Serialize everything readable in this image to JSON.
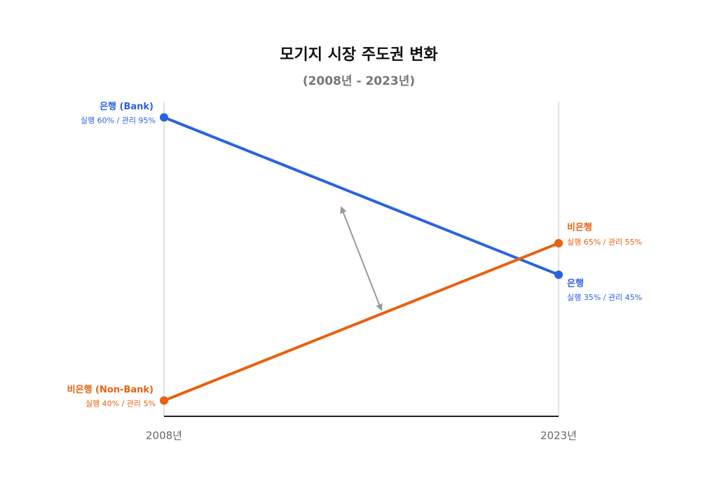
{
  "chart_data": {
    "type": "slope",
    "title": "모기지 시장 주도권 변화",
    "subtitle": "(2008년 - 2023년)",
    "categories": [
      "2008년",
      "2023년"
    ],
    "ylim": [
      0,
      100
    ],
    "series": [
      {
        "name": "은행 (Bank)",
        "end_name": "은행",
        "color": "#2b62e3",
        "values": [
          95,
          45
        ],
        "value_labels": [
          "실행 60% / 관리 95%",
          "실행 35% / 관리 45%"
        ]
      },
      {
        "name": "비은행 (Non-Bank)",
        "end_name": "비은행",
        "color": "#e8610f",
        "values": [
          5,
          55
        ],
        "value_labels": [
          "실행 40% / 관리 5%",
          "실행 65% / 관리 55%"
        ]
      }
    ]
  }
}
